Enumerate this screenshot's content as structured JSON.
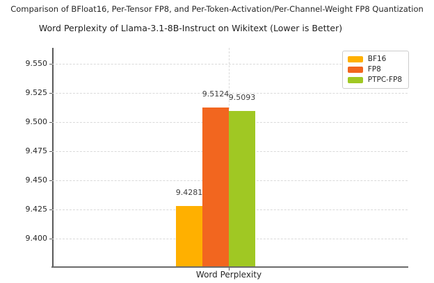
{
  "figure": {
    "suptitle": "Comparison of BFloat16, Per-Tensor FP8, and Per-Token-Activation/Per-Channel-Weight FP8 Quantization"
  },
  "chart_data": {
    "type": "bar",
    "title": "Word Perplexity of Llama-3.1-8B-Instruct on Wikitext (Lower is Better)",
    "categories": [
      "Word Perplexity"
    ],
    "series": [
      {
        "name": "BF16",
        "values": [
          9.4281
        ],
        "value_label": "9.4281",
        "color": "#FFB000"
      },
      {
        "name": "FP8",
        "values": [
          9.5124
        ],
        "value_label": "9.5124",
        "color": "#F2661F"
      },
      {
        "name": "PTPC-FP8",
        "values": [
          9.5093
        ],
        "value_label": "9.5093",
        "color": "#A0C823"
      }
    ],
    "ylim": [
      9.3763,
      9.5636
    ],
    "yticks": [
      9.4,
      9.425,
      9.45,
      9.475,
      9.5,
      9.525,
      9.55
    ],
    "ytick_labels": [
      "9.400",
      "9.425",
      "9.450",
      "9.475",
      "9.500",
      "9.525",
      "9.550"
    ],
    "grid": true,
    "legend_position": "upper right",
    "style": {
      "grid_color": "#d9d9d9",
      "spine_color": "#595959",
      "text_color": "#262626",
      "value_label_color": "#3d3d3d"
    }
  }
}
